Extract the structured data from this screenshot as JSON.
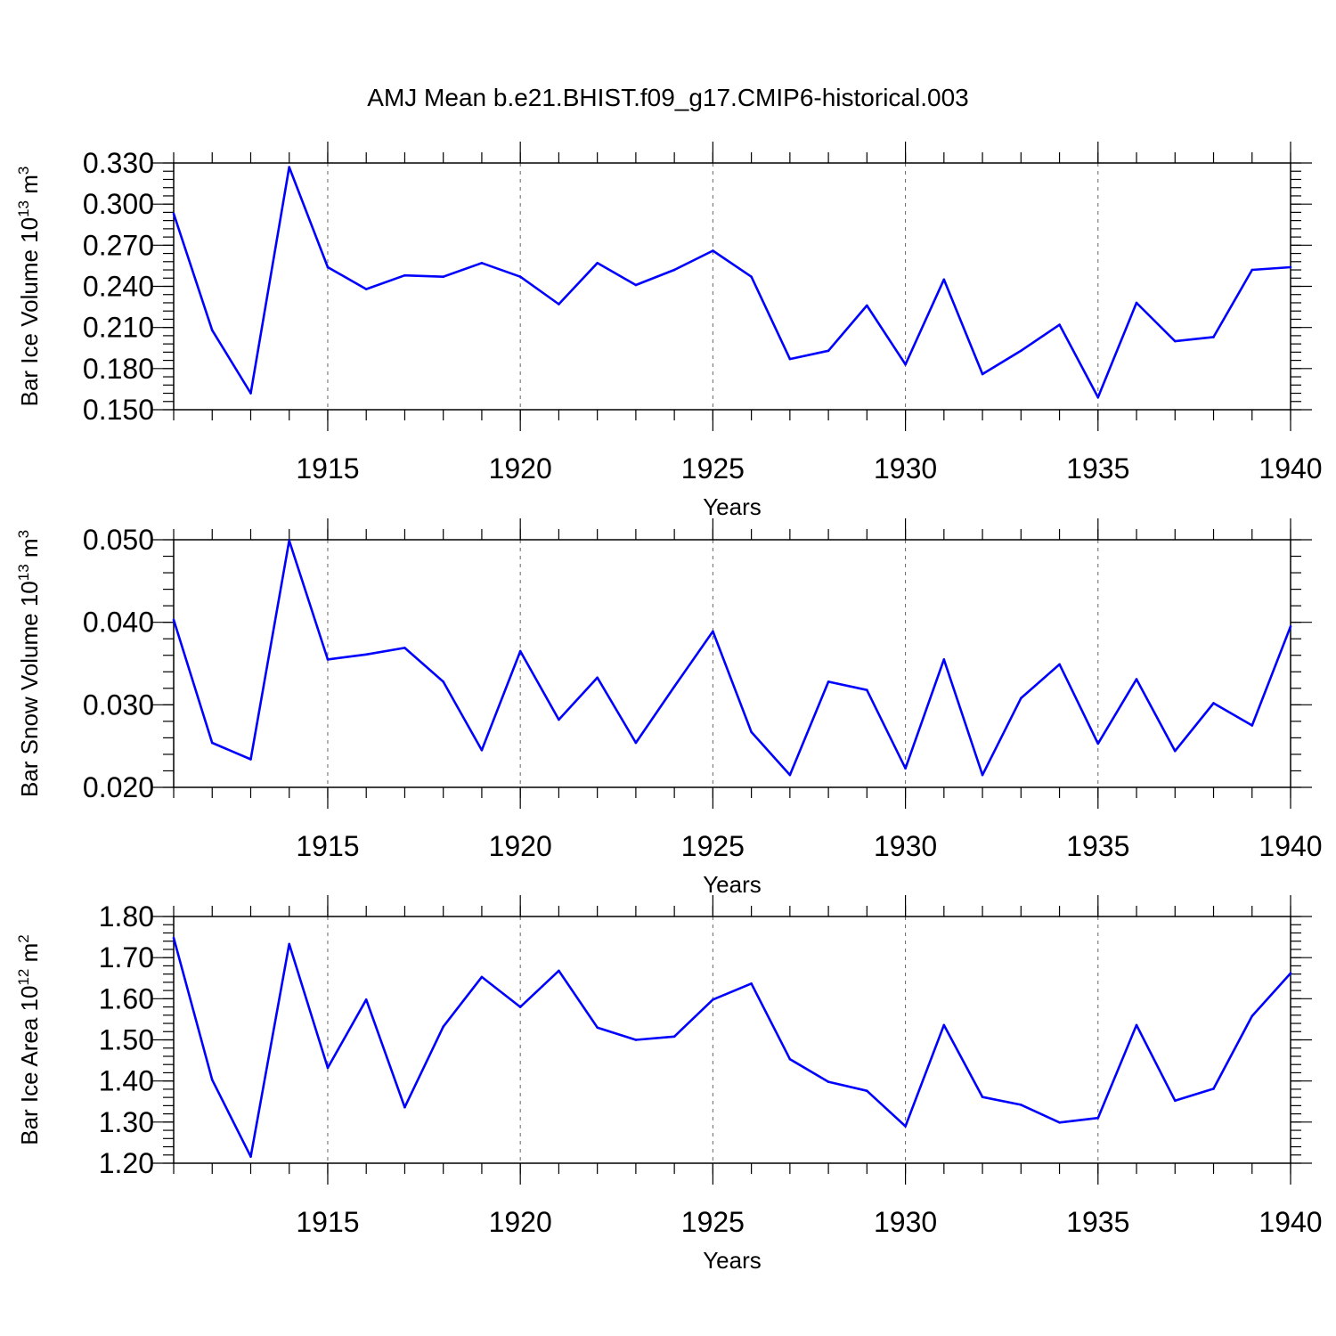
{
  "figure": {
    "title": "AMJ Mean b.e21.BHIST.f09_g17.CMIP6-historical.003"
  },
  "colors": {
    "series": "#0000ff",
    "grid": "#666666",
    "axis": "#000000"
  },
  "chart_data": [
    {
      "type": "line",
      "ylabel": "Bar Ice Volume 10",
      "ylabel_exp": "13",
      "ylabel_unit": " m",
      "ylabel_unit_exp": "3",
      "xlabel": "Years",
      "x_ticks": [
        1915,
        1920,
        1925,
        1930,
        1935,
        1940
      ],
      "x_tick_labels": [
        "1915",
        "1920",
        "1925",
        "1930",
        "1935",
        "1940"
      ],
      "xlim": [
        1911,
        1940
      ],
      "ylim": [
        0.15,
        0.33
      ],
      "y_ticks": [
        0.15,
        0.18,
        0.21,
        0.24,
        0.27,
        0.3,
        0.33
      ],
      "y_tick_labels": [
        "0.150",
        "0.180",
        "0.210",
        "0.240",
        "0.270",
        "0.300",
        "0.330"
      ],
      "y_minor_step": 0.006,
      "grid": "vertical dashed at major x ticks",
      "x": [
        1911,
        1912,
        1913,
        1914,
        1915,
        1916,
        1917,
        1918,
        1919,
        1920,
        1921,
        1922,
        1923,
        1924,
        1925,
        1926,
        1927,
        1928,
        1929,
        1930,
        1931,
        1932,
        1933,
        1934,
        1935,
        1936,
        1937,
        1938,
        1939,
        1940
      ],
      "values": [
        0.293,
        0.208,
        0.162,
        0.327,
        0.254,
        0.238,
        0.248,
        0.247,
        0.257,
        0.247,
        0.227,
        0.257,
        0.241,
        0.252,
        0.266,
        0.247,
        0.187,
        0.193,
        0.226,
        0.183,
        0.245,
        0.176,
        0.193,
        0.212,
        0.159,
        0.228,
        0.2,
        0.203,
        0.252,
        0.254
      ]
    },
    {
      "type": "line",
      "ylabel": "Bar Snow Volume 10",
      "ylabel_exp": "13",
      "ylabel_unit": " m",
      "ylabel_unit_exp": "3",
      "xlabel": "Years",
      "x_ticks": [
        1915,
        1920,
        1925,
        1930,
        1935,
        1940
      ],
      "x_tick_labels": [
        "1915",
        "1920",
        "1925",
        "1930",
        "1935",
        "1940"
      ],
      "xlim": [
        1911,
        1940
      ],
      "ylim": [
        0.02,
        0.05
      ],
      "y_ticks": [
        0.02,
        0.03,
        0.04,
        0.05
      ],
      "y_tick_labels": [
        "0.020",
        "0.030",
        "0.040",
        "0.050"
      ],
      "y_minor_step": 0.002,
      "grid": "vertical dashed at major x ticks",
      "x": [
        1911,
        1912,
        1913,
        1914,
        1915,
        1916,
        1917,
        1918,
        1919,
        1920,
        1921,
        1922,
        1923,
        1924,
        1925,
        1926,
        1927,
        1928,
        1929,
        1930,
        1931,
        1932,
        1933,
        1934,
        1935,
        1936,
        1937,
        1938,
        1939,
        1940
      ],
      "values": [
        0.0403,
        0.0254,
        0.0234,
        0.0499,
        0.0355,
        0.0361,
        0.0369,
        0.0328,
        0.0245,
        0.0365,
        0.0282,
        0.0333,
        0.0254,
        0.0322,
        0.0389,
        0.0267,
        0.0215,
        0.0328,
        0.0318,
        0.0223,
        0.0355,
        0.0215,
        0.0308,
        0.0349,
        0.0253,
        0.0331,
        0.0244,
        0.0302,
        0.0275,
        0.0395
      ]
    },
    {
      "type": "line",
      "ylabel": "Bar Ice Area 10",
      "ylabel_exp": "12",
      "ylabel_unit": " m",
      "ylabel_unit_exp": "2",
      "xlabel": "Years",
      "x_ticks": [
        1915,
        1920,
        1925,
        1930,
        1935,
        1940
      ],
      "x_tick_labels": [
        "1915",
        "1920",
        "1925",
        "1930",
        "1935",
        "1940"
      ],
      "xlim": [
        1911,
        1940
      ],
      "ylim": [
        1.2,
        1.8
      ],
      "y_ticks": [
        1.2,
        1.3,
        1.4,
        1.5,
        1.6,
        1.7,
        1.8
      ],
      "y_tick_labels": [
        "1.20",
        "1.30",
        "1.40",
        "1.50",
        "1.60",
        "1.70",
        "1.80"
      ],
      "y_minor_step": 0.02,
      "grid": "vertical dashed at major x ticks",
      "x": [
        1911,
        1912,
        1913,
        1914,
        1915,
        1916,
        1917,
        1918,
        1919,
        1920,
        1921,
        1922,
        1923,
        1924,
        1925,
        1926,
        1927,
        1928,
        1929,
        1930,
        1931,
        1932,
        1933,
        1934,
        1935,
        1936,
        1937,
        1938,
        1939,
        1940
      ],
      "values": [
        1.748,
        1.403,
        1.216,
        1.733,
        1.432,
        1.598,
        1.336,
        1.532,
        1.653,
        1.58,
        1.668,
        1.53,
        1.5,
        1.508,
        1.598,
        1.637,
        1.453,
        1.398,
        1.376,
        1.29,
        1.536,
        1.361,
        1.342,
        1.299,
        1.31,
        1.536,
        1.352,
        1.381,
        1.558,
        1.662
      ]
    }
  ]
}
